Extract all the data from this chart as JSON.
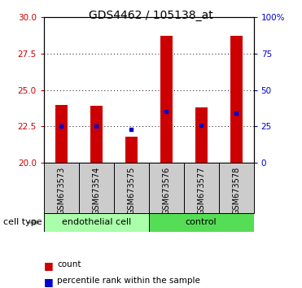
{
  "title": "GDS4462 / 105138_at",
  "samples": [
    "GSM673573",
    "GSM673574",
    "GSM673575",
    "GSM673576",
    "GSM673577",
    "GSM673578"
  ],
  "bar_bottom": 20,
  "bar_tops": [
    24.0,
    23.9,
    21.8,
    28.7,
    23.8,
    28.7
  ],
  "percentile_values": [
    22.5,
    22.5,
    22.3,
    23.5,
    22.55,
    23.4
  ],
  "ylim_min": 20,
  "ylim_max": 30,
  "yticks_left": [
    20,
    22.5,
    25,
    27.5,
    30
  ],
  "yticks_right": [
    0,
    25,
    50,
    75,
    100
  ],
  "bar_color": "#cc0000",
  "percentile_color": "#0000cc",
  "endo_color": "#aaffaa",
  "ctrl_color": "#55dd55",
  "sample_box_color": "#cccccc",
  "bg_color": "#ffffff",
  "tick_color_left": "#cc0000",
  "tick_color_right": "#0000cc",
  "bar_width": 0.35,
  "title_fontsize": 10,
  "tick_fontsize": 7.5,
  "label_fontsize": 7,
  "legend_fontsize": 7.5,
  "celltype_fontsize": 8
}
